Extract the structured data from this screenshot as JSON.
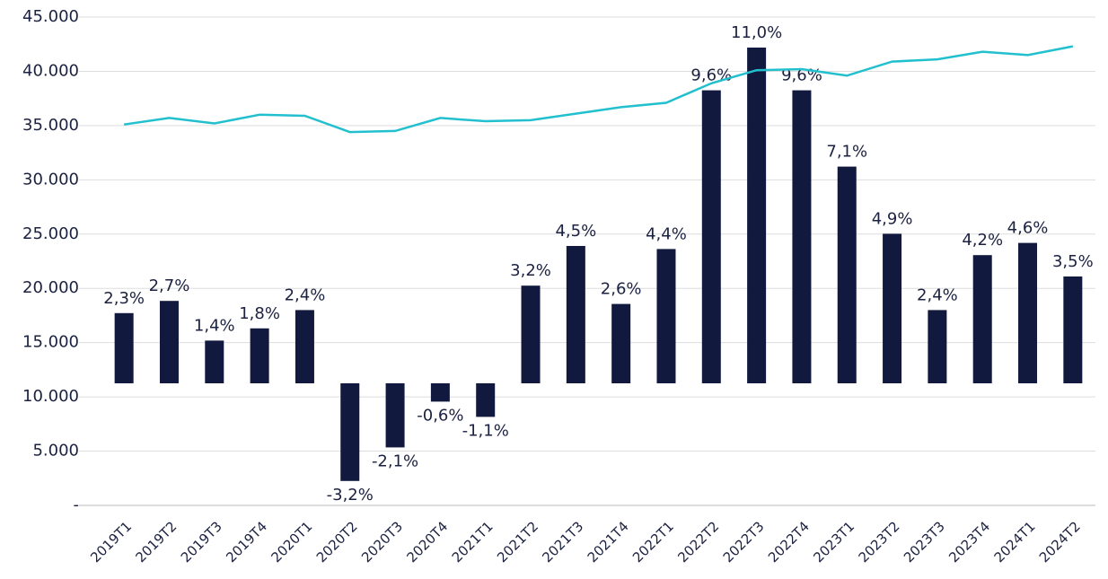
{
  "chart_data": {
    "type": "bar-line",
    "categories": [
      "2019T1",
      "2019T2",
      "2019T3",
      "2019T4",
      "2020T1",
      "2020T2",
      "2020T3",
      "2020T4",
      "2021T1",
      "2021T2",
      "2021T3",
      "2021T4",
      "2022T1",
      "2022T2",
      "2022T3",
      "2022T4",
      "2023T1",
      "2023T2",
      "2023T3",
      "2023T4",
      "2024T1",
      "2024T2"
    ],
    "series": [
      {
        "type": "bar",
        "axis": "y2",
        "color": "#111a3e",
        "values": [
          2.3,
          2.7,
          1.4,
          1.8,
          2.4,
          -3.2,
          -2.1,
          -0.6,
          -1.1,
          3.2,
          4.5,
          2.6,
          4.4,
          9.6,
          11.0,
          9.6,
          7.1,
          4.9,
          2.4,
          4.2,
          4.6,
          3.5
        ],
        "value_labels": [
          "2,3%",
          "2,7%",
          "1,4%",
          "1,8%",
          "2,4%",
          "-3,2%",
          "-2,1%",
          "-0,6%",
          "-1,1%",
          "3,2%",
          "4,5%",
          "2,6%",
          "4,4%",
          "9,6%",
          "11,0%",
          "9,6%",
          "7,1%",
          "4,9%",
          "2,4%",
          "4,2%",
          "4,6%",
          "3,5%"
        ]
      },
      {
        "type": "line",
        "color": "#22c0cf",
        "values": [
          35100,
          35700,
          35200,
          36000,
          35900,
          34400,
          34500,
          35700,
          35400,
          35500,
          36100,
          36700,
          37100,
          38900,
          40100,
          40200,
          39600,
          40900,
          41100,
          41800,
          41500,
          42300
        ]
      }
    ],
    "ylim": [
      0,
      45000
    ],
    "yticks": [
      {
        "value": 0,
        "label": "-"
      },
      {
        "value": 5000,
        "label": "5.000"
      },
      {
        "value": 10000,
        "label": "10.000"
      },
      {
        "value": 15000,
        "label": "15.000"
      },
      {
        "value": 20000,
        "label": "20.000"
      },
      {
        "value": 25000,
        "label": "25.000"
      },
      {
        "value": 30000,
        "label": "30.000"
      },
      {
        "value": 35000,
        "label": "35.000"
      },
      {
        "value": 40000,
        "label": "40.000"
      },
      {
        "value": 45000,
        "label": "45.000"
      }
    ],
    "y2lim": [
      -4,
      12
    ],
    "grid": true
  }
}
